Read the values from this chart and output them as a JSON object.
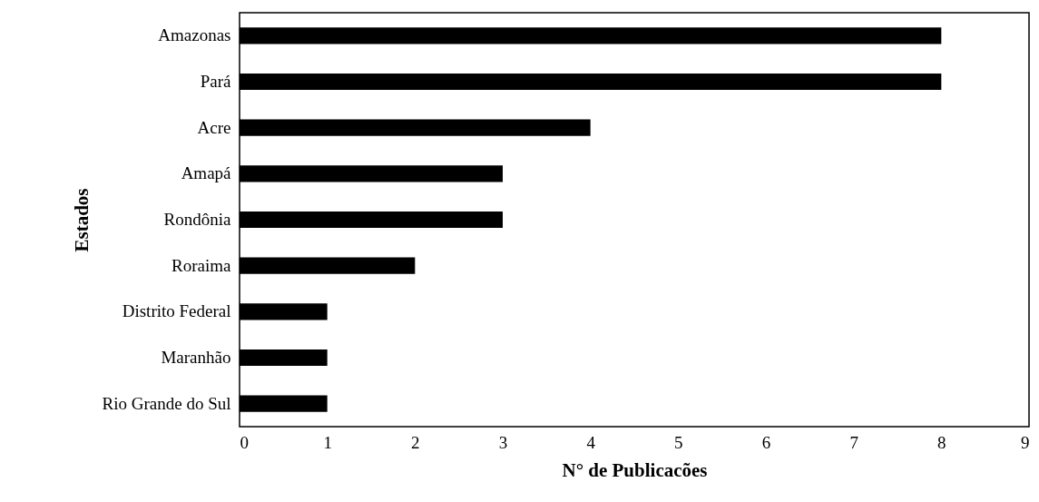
{
  "chart_data": {
    "type": "bar",
    "orientation": "horizontal",
    "xlabel": "N° de Publicacões",
    "ylabel": "Estados",
    "categories": [
      "Amazonas",
      "Pará",
      "Acre",
      "Amapá",
      "Rondônia",
      "Roraima",
      "Distrito Federal",
      "Maranhão",
      "Rio Grande do Sul"
    ],
    "values": [
      8,
      8,
      4,
      3,
      3,
      2,
      1,
      1,
      1
    ],
    "color": "#000000",
    "xlim": [
      0,
      9
    ],
    "xticks": [
      0,
      1,
      2,
      3,
      4,
      5,
      6,
      7,
      8,
      9
    ],
    "grid": false
  }
}
